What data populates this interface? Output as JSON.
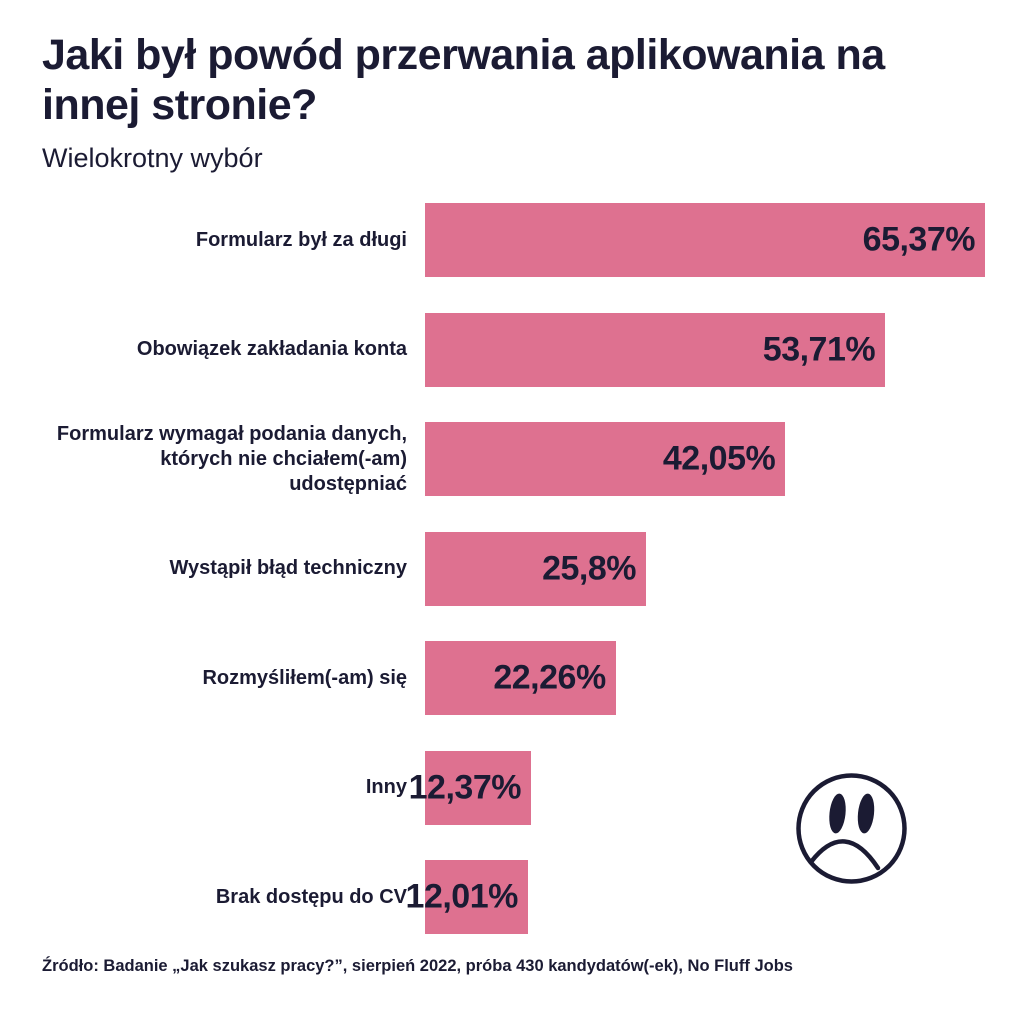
{
  "header": {
    "title": "Jaki był powód przerwania aplikowania na innej stronie?",
    "subtitle": "Wielokrotny wybór"
  },
  "chart_data": {
    "type": "bar",
    "orientation": "horizontal",
    "title": "Jaki był powód przerwania aplikowania na innej stronie?",
    "subtitle": "Wielokrotny wybór",
    "categories": [
      "Formularz był za długi",
      "Obowiązek zakładania konta",
      "Formularz wymagał podania danych,\nktórych nie chciałem(-am)\nudostępniać",
      "Wystąpił błąd techniczny",
      "Rozmyśliłem(-am) się",
      "Inny",
      "Brak dostępu do CV"
    ],
    "values": [
      65.37,
      53.71,
      42.05,
      25.8,
      22.26,
      12.37,
      12.01
    ],
    "value_labels": [
      "65,37%",
      "53,71%",
      "42,05%",
      "25,8%",
      "22,26%",
      "12,37%",
      "12,01%"
    ],
    "xlim": [
      0,
      65.37
    ],
    "grid": false,
    "legend": false,
    "bar_color": "#de7190",
    "text_color": "#1b1b33"
  },
  "icons": {
    "sad_face": "sad-face-icon"
  },
  "footer": {
    "source": "Źródło: Badanie „Jak szukasz pracy?”, sierpień 2022, próba 430 kandydatów(-ek), No Fluff Jobs"
  }
}
